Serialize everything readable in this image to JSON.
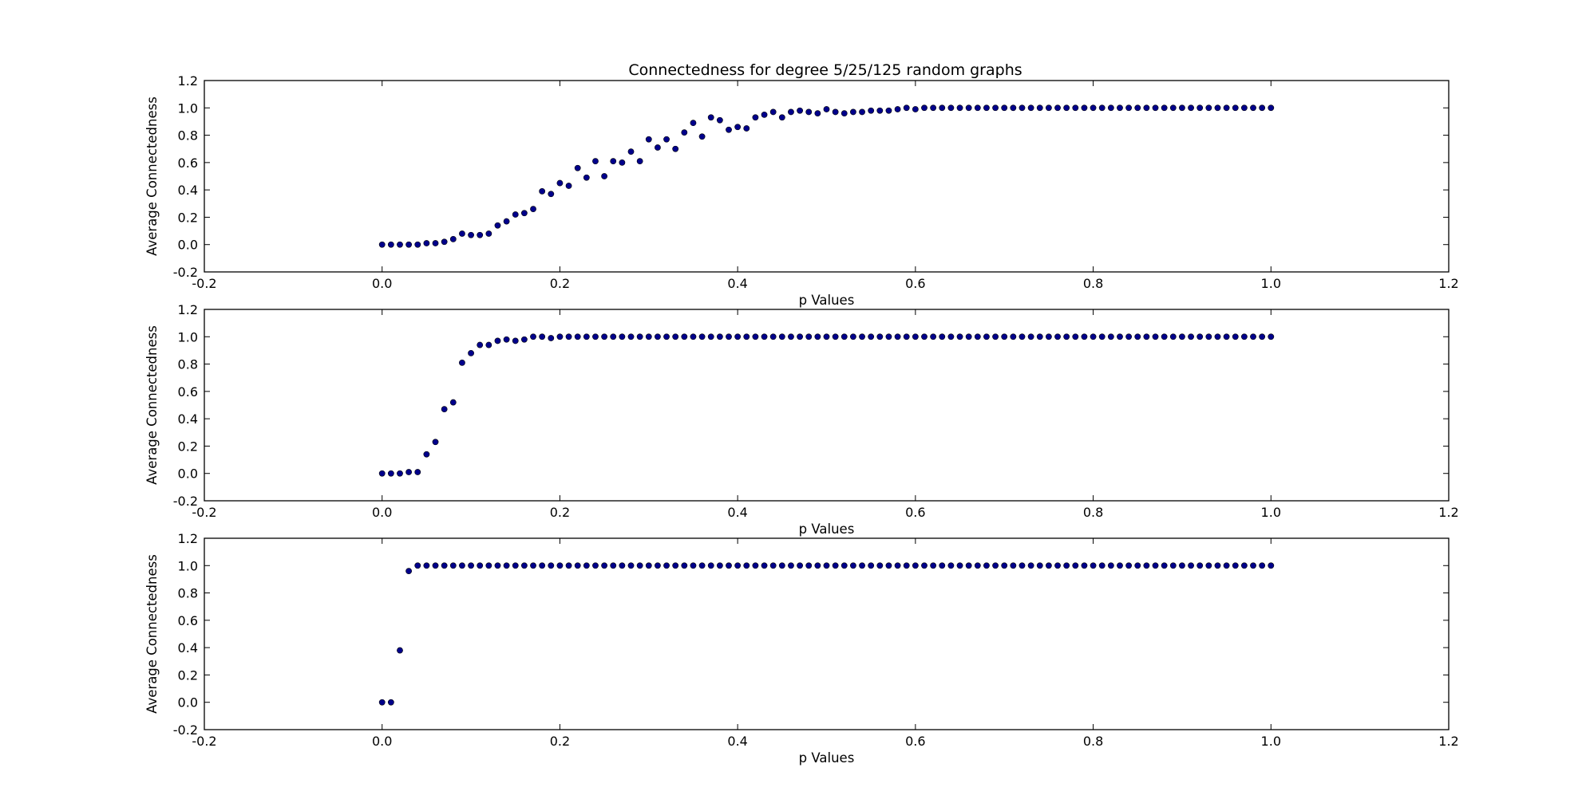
{
  "colors": {
    "marker": "#00008b",
    "background": "#ffffff",
    "axes": "#000000"
  },
  "chart_data": [
    {
      "type": "scatter",
      "title": "Connectedness for degree 5/25/125 random graphs",
      "xlabel": "p Values",
      "ylabel": "Average Connectedness",
      "xlim": [
        -0.2,
        1.2
      ],
      "ylim": [
        -0.2,
        1.2
      ],
      "xticks": [
        "-0.2",
        "0.0",
        "0.2",
        "0.4",
        "0.6",
        "0.8",
        "1.0",
        "1.2"
      ],
      "yticks": [
        "-0.2",
        "0.0",
        "0.2",
        "0.4",
        "0.6",
        "0.8",
        "1.0",
        "1.2"
      ],
      "grid": false,
      "x_start": 0.0,
      "x_step": 0.01,
      "y": [
        0.0,
        0.0,
        0.0,
        0.0,
        0.0,
        0.01,
        0.01,
        0.02,
        0.04,
        0.08,
        0.07,
        0.07,
        0.08,
        0.14,
        0.17,
        0.22,
        0.23,
        0.26,
        0.39,
        0.37,
        0.45,
        0.43,
        0.56,
        0.49,
        0.61,
        0.5,
        0.61,
        0.6,
        0.68,
        0.61,
        0.77,
        0.71,
        0.77,
        0.7,
        0.82,
        0.89,
        0.79,
        0.93,
        0.91,
        0.84,
        0.86,
        0.85,
        0.93,
        0.95,
        0.97,
        0.93,
        0.97,
        0.98,
        0.97,
        0.96,
        0.99,
        0.97,
        0.96,
        0.97,
        0.97,
        0.98,
        0.98,
        0.98,
        0.99,
        1.0,
        0.99,
        1.0,
        1.0,
        1.0,
        1.0,
        1.0,
        1.0,
        1.0,
        1.0,
        1.0,
        1.0,
        1.0,
        1.0,
        1.0,
        1.0,
        1.0,
        1.0,
        1.0,
        1.0,
        1.0,
        1.0,
        1.0,
        1.0,
        1.0,
        1.0,
        1.0,
        1.0,
        1.0,
        1.0,
        1.0,
        1.0,
        1.0,
        1.0,
        1.0,
        1.0,
        1.0,
        1.0,
        1.0,
        1.0,
        1.0,
        1.0
      ]
    },
    {
      "type": "scatter",
      "title": "",
      "xlabel": "p Values",
      "ylabel": "Average Connectedness",
      "xlim": [
        -0.2,
        1.2
      ],
      "ylim": [
        -0.2,
        1.2
      ],
      "xticks": [
        "-0.2",
        "0.0",
        "0.2",
        "0.4",
        "0.6",
        "0.8",
        "1.0",
        "1.2"
      ],
      "yticks": [
        "-0.2",
        "0.0",
        "0.2",
        "0.4",
        "0.6",
        "0.8",
        "1.0",
        "1.2"
      ],
      "grid": false,
      "x_start": 0.0,
      "x_step": 0.01,
      "y": [
        0.0,
        0.0,
        0.0,
        0.01,
        0.01,
        0.14,
        0.23,
        0.47,
        0.52,
        0.81,
        0.88,
        0.94,
        0.94,
        0.97,
        0.98,
        0.97,
        0.98,
        1.0,
        1.0,
        0.99,
        1.0,
        1.0,
        1.0,
        1.0,
        1.0,
        1.0,
        1.0,
        1.0,
        1.0,
        1.0,
        1.0,
        1.0,
        1.0,
        1.0,
        1.0,
        1.0,
        1.0,
        1.0,
        1.0,
        1.0,
        1.0,
        1.0,
        1.0,
        1.0,
        1.0,
        1.0,
        1.0,
        1.0,
        1.0,
        1.0,
        1.0,
        1.0,
        1.0,
        1.0,
        1.0,
        1.0,
        1.0,
        1.0,
        1.0,
        1.0,
        1.0,
        1.0,
        1.0,
        1.0,
        1.0,
        1.0,
        1.0,
        1.0,
        1.0,
        1.0,
        1.0,
        1.0,
        1.0,
        1.0,
        1.0,
        1.0,
        1.0,
        1.0,
        1.0,
        1.0,
        1.0,
        1.0,
        1.0,
        1.0,
        1.0,
        1.0,
        1.0,
        1.0,
        1.0,
        1.0,
        1.0,
        1.0,
        1.0,
        1.0,
        1.0,
        1.0,
        1.0,
        1.0,
        1.0,
        1.0,
        1.0
      ]
    },
    {
      "type": "scatter",
      "title": "",
      "xlabel": "p Values",
      "ylabel": "Average Connectedness",
      "xlim": [
        -0.2,
        1.2
      ],
      "ylim": [
        -0.2,
        1.2
      ],
      "xticks": [
        "-0.2",
        "0.0",
        "0.2",
        "0.4",
        "0.6",
        "0.8",
        "1.0",
        "1.2"
      ],
      "yticks": [
        "-0.2",
        "0.0",
        "0.2",
        "0.4",
        "0.6",
        "0.8",
        "1.0",
        "1.2"
      ],
      "grid": false,
      "x_start": 0.0,
      "x_step": 0.01,
      "y": [
        0.0,
        0.0,
        0.38,
        0.96,
        1.0,
        1.0,
        1.0,
        1.0,
        1.0,
        1.0,
        1.0,
        1.0,
        1.0,
        1.0,
        1.0,
        1.0,
        1.0,
        1.0,
        1.0,
        1.0,
        1.0,
        1.0,
        1.0,
        1.0,
        1.0,
        1.0,
        1.0,
        1.0,
        1.0,
        1.0,
        1.0,
        1.0,
        1.0,
        1.0,
        1.0,
        1.0,
        1.0,
        1.0,
        1.0,
        1.0,
        1.0,
        1.0,
        1.0,
        1.0,
        1.0,
        1.0,
        1.0,
        1.0,
        1.0,
        1.0,
        1.0,
        1.0,
        1.0,
        1.0,
        1.0,
        1.0,
        1.0,
        1.0,
        1.0,
        1.0,
        1.0,
        1.0,
        1.0,
        1.0,
        1.0,
        1.0,
        1.0,
        1.0,
        1.0,
        1.0,
        1.0,
        1.0,
        1.0,
        1.0,
        1.0,
        1.0,
        1.0,
        1.0,
        1.0,
        1.0,
        1.0,
        1.0,
        1.0,
        1.0,
        1.0,
        1.0,
        1.0,
        1.0,
        1.0,
        1.0,
        1.0,
        1.0,
        1.0,
        1.0,
        1.0,
        1.0,
        1.0,
        1.0,
        1.0,
        1.0,
        1.0
      ]
    }
  ]
}
